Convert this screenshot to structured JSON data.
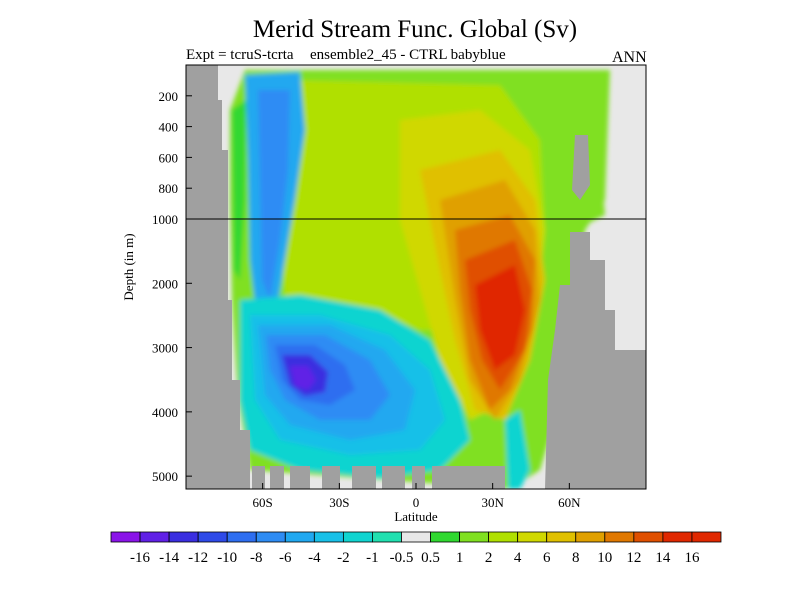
{
  "header": {
    "title": "Merid Stream Func. Global (Sv)",
    "subtitle_left": "Expt = tcruS-tcrta",
    "subtitle_center": "ensemble2_45 - CTRL babyblue",
    "season": "ANN"
  },
  "chart_data": {
    "type": "heatmap",
    "title": "Merid Stream Func. Global (Sv)",
    "xlabel": "Latitude",
    "ylabel": "Depth (in m)",
    "x_ticks": [
      "60S",
      "30S",
      "0",
      "30N",
      "60N"
    ],
    "x_tick_values": [
      -60,
      -30,
      0,
      30,
      60
    ],
    "xlim": [
      -90,
      90
    ],
    "y_ticks_upper": [
      200,
      400,
      600,
      800,
      1000
    ],
    "y_ticks_lower": [
      2000,
      3000,
      4000,
      5000
    ],
    "ylim": [
      0,
      5200
    ],
    "y_scale_break": 1000,
    "colorbar_labels": [
      "-16",
      "-14",
      "-12",
      "-10",
      "-8",
      "-6",
      "-4",
      "-2",
      "-1",
      "-0.5",
      "0.5",
      "1",
      "2",
      "4",
      "6",
      "8",
      "10",
      "12",
      "14",
      "16"
    ],
    "colorbar_colors": [
      "#8a14e8",
      "#6020e6",
      "#3a2ee0",
      "#2e4ae8",
      "#2e6ef0",
      "#2e8cf4",
      "#20a8f0",
      "#18c0e8",
      "#10d4d0",
      "#20e0b0",
      "#e8e8e8",
      "#30d830",
      "#80e020",
      "#b0e000",
      "#d0d800",
      "#e0c000",
      "#e0a000",
      "#e07800",
      "#e05000",
      "#e02800"
    ],
    "grid": false,
    "legend_placement": "bottom"
  }
}
